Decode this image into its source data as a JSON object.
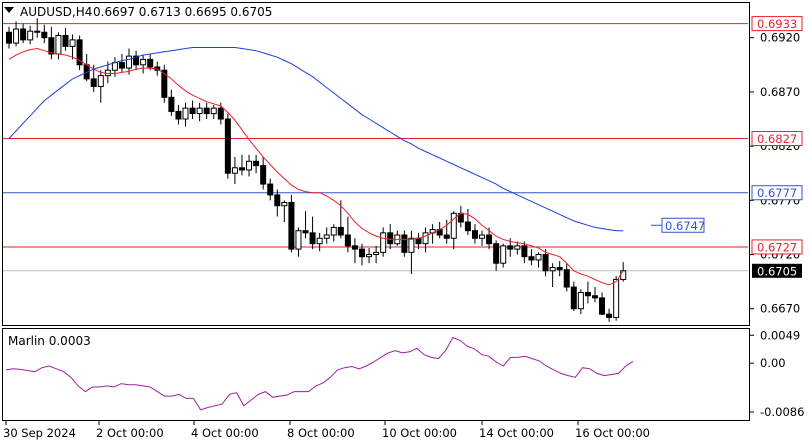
{
  "header": {
    "menu_icon": "triangle-down-icon",
    "symbol": "AUDUSD,H4",
    "ohlc": "0.6697 0.6713 0.6695 0.6705"
  },
  "indicator": {
    "label": "Marlin 0.0003"
  },
  "colors": {
    "bull_candle": "#ffffff",
    "bear_candle": "#000000",
    "ma_fast": "#e8222a",
    "ma_slow": "#1f3fd6",
    "hline_red": "#e8222a",
    "hline_blue": "#3355cc",
    "oscillator": "#a020a0",
    "current_price_bg": "#000000"
  },
  "chart_data": [
    {
      "type": "candlestick",
      "symbol": "AUDUSD",
      "timeframe": "H4",
      "ylim": [
        0.6655,
        0.6952
      ],
      "y_ticks": [
        0.667,
        0.672,
        0.677,
        0.682,
        0.687,
        0.692
      ],
      "x_tick_labels": [
        "30 Sep 2024",
        "2 Oct 00:00",
        "4 Oct 00:00",
        "8 Oct 00:00",
        "10 Oct 00:00",
        "14 Oct 00:00",
        "16 Oct 00:00"
      ],
      "levels": [
        {
          "value": "0.6933",
          "style": "red"
        },
        {
          "value": "0.6827",
          "style": "red"
        },
        {
          "value": "0.6777",
          "style": "blue"
        },
        {
          "value": "0.6727",
          "style": "red"
        }
      ],
      "ma_callout": "0.6747",
      "current_price": "0.6705",
      "candles": [
        [
          0.6925,
          0.693,
          0.691,
          0.6915
        ],
        [
          0.6915,
          0.6935,
          0.6912,
          0.6928
        ],
        [
          0.6928,
          0.6933,
          0.6915,
          0.6918
        ],
        [
          0.6918,
          0.6931,
          0.6914,
          0.6926
        ],
        [
          0.6926,
          0.6938,
          0.692,
          0.6925
        ],
        [
          0.6925,
          0.6932,
          0.6915,
          0.692
        ],
        [
          0.692,
          0.693,
          0.69,
          0.6905
        ],
        [
          0.6905,
          0.6925,
          0.69,
          0.6922
        ],
        [
          0.6922,
          0.6929,
          0.6908,
          0.6912
        ],
        [
          0.6912,
          0.6923,
          0.69,
          0.6918
        ],
        [
          0.6918,
          0.6922,
          0.689,
          0.6895
        ],
        [
          0.6895,
          0.6905,
          0.688,
          0.6882
        ],
        [
          0.6882,
          0.6895,
          0.687,
          0.6875
        ],
        [
          0.6875,
          0.689,
          0.686,
          0.6885
        ],
        [
          0.6885,
          0.6898,
          0.6878,
          0.689
        ],
        [
          0.689,
          0.6902,
          0.6884,
          0.6897
        ],
        [
          0.6897,
          0.6905,
          0.6888,
          0.6892
        ],
        [
          0.6892,
          0.691,
          0.6886,
          0.6903
        ],
        [
          0.6903,
          0.6908,
          0.689,
          0.6895
        ],
        [
          0.6895,
          0.6904,
          0.6887,
          0.69
        ],
        [
          0.69,
          0.6905,
          0.689,
          0.6893
        ],
        [
          0.6893,
          0.6898,
          0.6885,
          0.689
        ],
        [
          0.689,
          0.6895,
          0.686,
          0.6865
        ],
        [
          0.6865,
          0.6872,
          0.6848,
          0.6852
        ],
        [
          0.6852,
          0.6858,
          0.684,
          0.6845
        ],
        [
          0.6845,
          0.686,
          0.6838,
          0.6855
        ],
        [
          0.6855,
          0.6862,
          0.6845,
          0.685
        ],
        [
          0.685,
          0.686,
          0.6843,
          0.6855
        ],
        [
          0.6855,
          0.686,
          0.6845,
          0.685
        ],
        [
          0.685,
          0.6858,
          0.6845,
          0.6855
        ],
        [
          0.6855,
          0.686,
          0.684,
          0.6845
        ],
        [
          0.6845,
          0.685,
          0.679,
          0.6795
        ],
        [
          0.6795,
          0.681,
          0.6785,
          0.68
        ],
        [
          0.68,
          0.6812,
          0.6793,
          0.6798
        ],
        [
          0.6798,
          0.6812,
          0.6792,
          0.6806
        ],
        [
          0.6806,
          0.6812,
          0.6795,
          0.6802
        ],
        [
          0.6802,
          0.681,
          0.678,
          0.6785
        ],
        [
          0.6785,
          0.679,
          0.677,
          0.6775
        ],
        [
          0.6775,
          0.678,
          0.6755,
          0.6765
        ],
        [
          0.6765,
          0.677,
          0.675,
          0.6768
        ],
        [
          0.6768,
          0.6775,
          0.6722,
          0.6725
        ],
        [
          0.6725,
          0.6745,
          0.6718,
          0.6742
        ],
        [
          0.6742,
          0.676,
          0.6735,
          0.674
        ],
        [
          0.674,
          0.6755,
          0.6725,
          0.673
        ],
        [
          0.673,
          0.674,
          0.6723,
          0.6735
        ],
        [
          0.6735,
          0.6745,
          0.673,
          0.6738
        ],
        [
          0.6738,
          0.6748,
          0.6732,
          0.6745
        ],
        [
          0.6745,
          0.677,
          0.6735,
          0.6738
        ],
        [
          0.6738,
          0.6755,
          0.6722,
          0.6728
        ],
        [
          0.6728,
          0.6735,
          0.6712,
          0.6725
        ],
        [
          0.6725,
          0.673,
          0.671,
          0.6718
        ],
        [
          0.6718,
          0.6726,
          0.6712,
          0.672
        ],
        [
          0.672,
          0.6728,
          0.6712,
          0.6722
        ],
        [
          0.6722,
          0.6745,
          0.6718,
          0.674
        ],
        [
          0.674,
          0.6748,
          0.6725,
          0.673
        ],
        [
          0.673,
          0.6742,
          0.6728,
          0.6738
        ],
        [
          0.6738,
          0.6742,
          0.6718,
          0.6722
        ],
        [
          0.6722,
          0.6742,
          0.6702,
          0.6735
        ],
        [
          0.6735,
          0.674,
          0.6725,
          0.673
        ],
        [
          0.673,
          0.6745,
          0.6722,
          0.674
        ],
        [
          0.674,
          0.6748,
          0.673,
          0.6743
        ],
        [
          0.6743,
          0.675,
          0.6735,
          0.6738
        ],
        [
          0.6738,
          0.6752,
          0.673,
          0.6735
        ],
        [
          0.6735,
          0.676,
          0.6725,
          0.6758
        ],
        [
          0.6758,
          0.6765,
          0.6745,
          0.675
        ],
        [
          0.675,
          0.6762,
          0.6738,
          0.6742
        ],
        [
          0.6742,
          0.6748,
          0.673,
          0.6735
        ],
        [
          0.6735,
          0.6742,
          0.6728,
          0.6738
        ],
        [
          0.6738,
          0.6745,
          0.6725,
          0.673
        ],
        [
          0.673,
          0.6733,
          0.6705,
          0.6712
        ],
        [
          0.6712,
          0.673,
          0.6708,
          0.6728
        ],
        [
          0.6728,
          0.6735,
          0.6718,
          0.6725
        ],
        [
          0.6725,
          0.6732,
          0.672,
          0.6728
        ],
        [
          0.6728,
          0.6732,
          0.6712,
          0.6718
        ],
        [
          0.6718,
          0.6725,
          0.671,
          0.6715
        ],
        [
          0.6715,
          0.6722,
          0.6708,
          0.672
        ],
        [
          0.672,
          0.6725,
          0.67,
          0.6705
        ],
        [
          0.6705,
          0.6712,
          0.669,
          0.6708
        ],
        [
          0.6708,
          0.6714,
          0.67,
          0.6706
        ],
        [
          0.6706,
          0.6712,
          0.6686,
          0.669
        ],
        [
          0.669,
          0.6695,
          0.6668,
          0.667
        ],
        [
          0.667,
          0.6688,
          0.6665,
          0.6685
        ],
        [
          0.6685,
          0.6695,
          0.6675,
          0.6682
        ],
        [
          0.6682,
          0.669,
          0.6676,
          0.668
        ],
        [
          0.668,
          0.6685,
          0.6664,
          0.6665
        ],
        [
          0.6665,
          0.667,
          0.6658,
          0.6662
        ],
        [
          0.6662,
          0.67,
          0.6659,
          0.6697
        ],
        [
          0.6697,
          0.6713,
          0.6695,
          0.6705
        ]
      ],
      "ma_fast_values": [
        0.69,
        0.6904,
        0.6907,
        0.6909,
        0.691,
        0.6908,
        0.6906,
        0.6905,
        0.6904,
        0.6902,
        0.6899,
        0.6895,
        0.6891,
        0.6888,
        0.6887,
        0.6887,
        0.6888,
        0.6889,
        0.6891,
        0.6892,
        0.6892,
        0.6891,
        0.6887,
        0.6882,
        0.6876,
        0.6871,
        0.6867,
        0.6864,
        0.6861,
        0.6859,
        0.6857,
        0.6851,
        0.6844,
        0.6835,
        0.6826,
        0.6818,
        0.681,
        0.6803,
        0.6796,
        0.679,
        0.6784,
        0.678,
        0.6778,
        0.6777,
        0.6777,
        0.6774,
        0.677,
        0.6765,
        0.6758,
        0.675,
        0.6744,
        0.674,
        0.6737,
        0.6735,
        0.6734,
        0.6734,
        0.6734,
        0.6734,
        0.6735,
        0.6737,
        0.674,
        0.6743,
        0.6747,
        0.6753,
        0.6758,
        0.6757,
        0.6753,
        0.6747,
        0.6742,
        0.6737,
        0.6734,
        0.6732,
        0.6731,
        0.673,
        0.6728,
        0.6726,
        0.6722,
        0.672,
        0.6718,
        0.6712,
        0.6705,
        0.6702,
        0.67,
        0.6697,
        0.6694,
        0.6692,
        0.6695,
        0.6705
      ],
      "ma_slow_values": [
        0.6827,
        0.6834,
        0.6841,
        0.6848,
        0.6855,
        0.6862,
        0.6867,
        0.6872,
        0.6877,
        0.6882,
        0.6885,
        0.6888,
        0.6891,
        0.6893,
        0.6895,
        0.6897,
        0.6899,
        0.69,
        0.6902,
        0.6904,
        0.6905,
        0.6906,
        0.6907,
        0.6908,
        0.6909,
        0.691,
        0.6911,
        0.6911,
        0.6911,
        0.6911,
        0.6911,
        0.6911,
        0.6911,
        0.691,
        0.6909,
        0.6908,
        0.6906,
        0.6904,
        0.6902,
        0.6899,
        0.6896,
        0.6892,
        0.6888,
        0.6884,
        0.6879,
        0.6874,
        0.6869,
        0.6864,
        0.6859,
        0.6854,
        0.6849,
        0.6845,
        0.6841,
        0.6837,
        0.6833,
        0.6829,
        0.6825,
        0.6822,
        0.6818,
        0.6815,
        0.6812,
        0.6809,
        0.6806,
        0.6803,
        0.68,
        0.6797,
        0.6794,
        0.6791,
        0.6788,
        0.6785,
        0.6781,
        0.6778,
        0.6775,
        0.6772,
        0.6769,
        0.6766,
        0.6763,
        0.676,
        0.6757,
        0.6754,
        0.6751,
        0.6749,
        0.6747,
        0.6745,
        0.6744,
        0.6743,
        0.6742,
        0.6742
      ]
    },
    {
      "type": "line",
      "name": "Marlin",
      "value_label": "0.0003",
      "ylim": [
        -0.01,
        0.006
      ],
      "y_tick_labels": [
        "0.0049",
        "0.00",
        "-0.0086"
      ],
      "y_tick_values": [
        0.0049,
        0.0,
        -0.0086
      ],
      "values": [
        -0.0012,
        -0.001,
        -0.0011,
        -0.0013,
        -0.0015,
        -0.0008,
        -0.0005,
        -0.001,
        -0.0015,
        -0.0025,
        -0.004,
        -0.005,
        -0.0042,
        -0.0042,
        -0.004,
        -0.0042,
        -0.0036,
        -0.0038,
        -0.0038,
        -0.004,
        -0.0042,
        -0.005,
        -0.0058,
        -0.0058,
        -0.0055,
        -0.0062,
        -0.0062,
        -0.0082,
        -0.0078,
        -0.0075,
        -0.0072,
        -0.0055,
        -0.0052,
        -0.0075,
        -0.0065,
        -0.0055,
        -0.005,
        -0.006,
        -0.0058,
        -0.0056,
        -0.005,
        -0.005,
        -0.005,
        -0.004,
        -0.0035,
        -0.0025,
        -0.0012,
        -0.0008,
        -0.0006,
        -0.001,
        -0.0005,
        0.0002,
        0.001,
        0.0018,
        0.0022,
        0.0018,
        0.002,
        0.0026,
        0.0015,
        0.001,
        0.0008,
        0.0022,
        0.0045,
        0.004,
        0.003,
        0.0025,
        0.0015,
        0.0012,
        0.0002,
        -0.0005,
        0.001,
        0.001,
        0.0012,
        0.0008,
        0.0004,
        -0.0005,
        -0.0012,
        -0.0018,
        -0.0022,
        -0.0025,
        -0.0008,
        -0.001,
        -0.0018,
        -0.0022,
        -0.002,
        -0.0018,
        -0.0005,
        0.0003
      ]
    }
  ]
}
